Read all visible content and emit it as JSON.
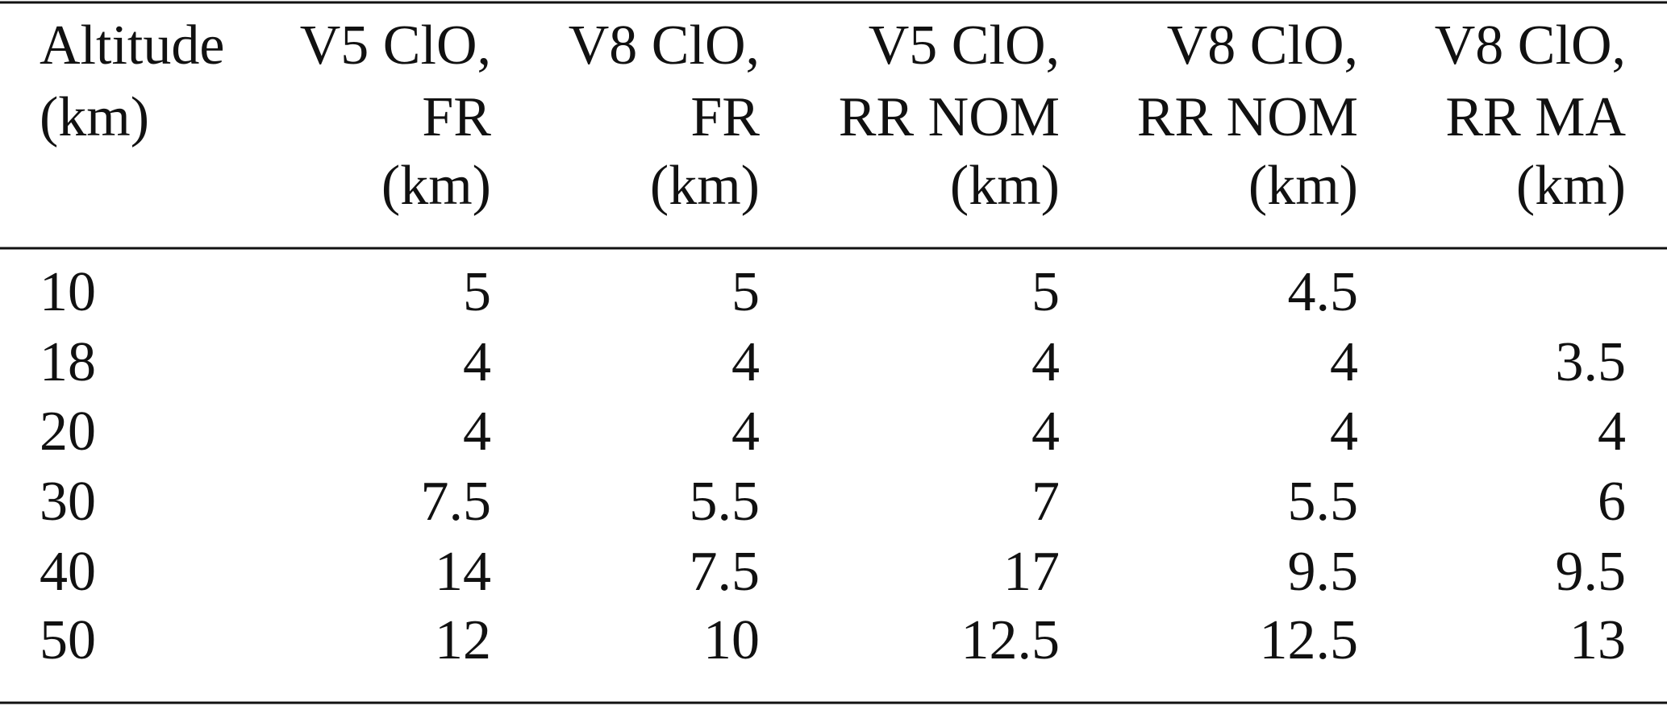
{
  "table": {
    "header": [
      [
        "Altitude",
        "(km)"
      ],
      [
        "V5 ClO,",
        "FR",
        "(km)"
      ],
      [
        "V8 ClO,",
        "FR",
        "(km)"
      ],
      [
        "V5 ClO,",
        "RR NOM",
        "(km)"
      ],
      [
        "V8 ClO,",
        "RR NOM",
        "(km)"
      ],
      [
        "V8 ClO,",
        "RR MA",
        "(km)"
      ]
    ],
    "rows": [
      [
        10,
        5,
        5,
        5,
        4.5,
        null
      ],
      [
        18,
        4,
        4,
        4,
        4,
        3.5
      ],
      [
        20,
        4,
        4,
        4,
        4,
        4
      ],
      [
        30,
        7.5,
        5.5,
        7,
        5.5,
        6
      ],
      [
        40,
        14,
        7.5,
        17,
        9.5,
        9.5
      ],
      [
        50,
        12,
        10,
        12.5,
        12.5,
        13
      ]
    ]
  }
}
